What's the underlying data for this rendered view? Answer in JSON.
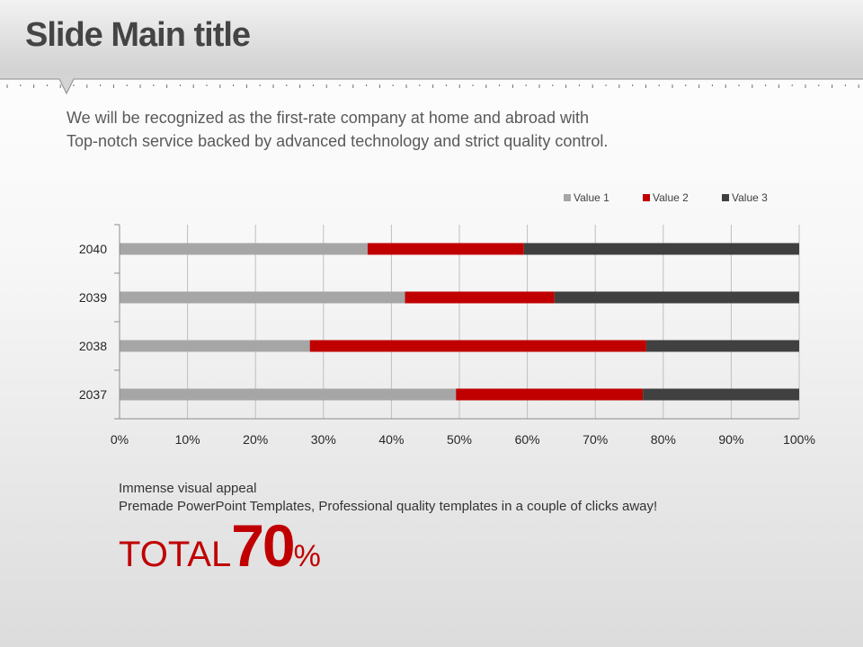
{
  "slide": {
    "title": "Slide Main title",
    "subtitle_lines": [
      "We will be recognized as the first-rate company at home and abroad with",
      "Top-notch service backed by advanced technology and strict quality control."
    ],
    "caption_lines": [
      "Immense visual appeal",
      "Premade PowerPoint Templates, Professional quality templates in a couple of clicks away!"
    ],
    "total": {
      "word": "TOTAL",
      "number": "70",
      "unit": "%"
    }
  },
  "colors": {
    "value1": "#a6a6a6",
    "value2": "#c00000",
    "value3": "#404040",
    "accent": "#c00000"
  },
  "chart_data": {
    "type": "bar",
    "orientation": "horizontal",
    "stacked": "percent",
    "categories": [
      "2040",
      "2039",
      "2038",
      "2037"
    ],
    "series": [
      {
        "name": "Value   1",
        "values": [
          36.5,
          42,
          28,
          49.5
        ]
      },
      {
        "name": "Value   2",
        "values": [
          23,
          22,
          49.5,
          27.5
        ]
      },
      {
        "name": "Value   3",
        "values": [
          40.5,
          36,
          22.5,
          23
        ]
      }
    ],
    "xlim": [
      0,
      100
    ],
    "x_ticks": [
      "0%",
      "10%",
      "20%",
      "30%",
      "40%",
      "50%",
      "60%",
      "70%",
      "80%",
      "90%",
      "100%"
    ],
    "grid": "vertical",
    "legend": "top-right"
  }
}
